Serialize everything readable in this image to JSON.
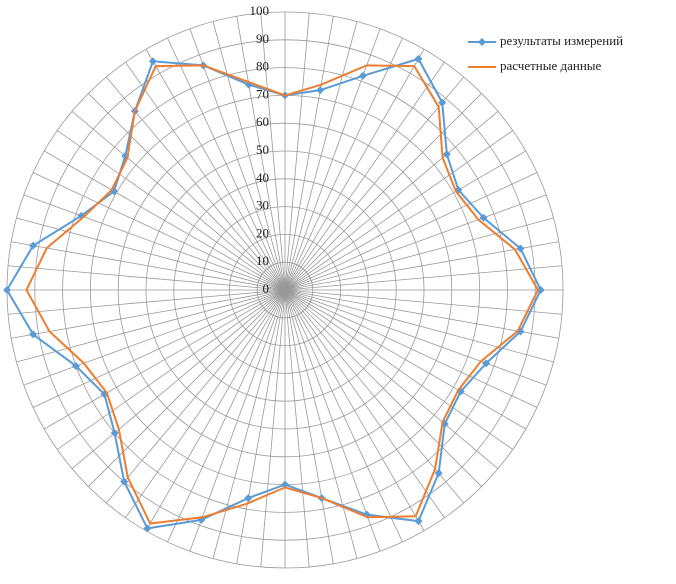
{
  "chart_data": {
    "type": "radar",
    "categories": [
      null,
      null,
      null,
      null,
      null,
      null,
      null,
      null,
      null,
      null,
      null,
      null,
      null,
      null,
      null,
      null,
      null,
      null,
      null,
      null,
      null,
      null,
      null,
      null,
      null,
      null,
      null,
      null,
      null,
      null,
      null,
      null,
      null,
      null,
      null,
      null
    ],
    "series": [
      {
        "name": "результаты измерений",
        "color": "#5b9bd5",
        "marker": true,
        "values": [
          70,
          73,
          82,
          96,
          88,
          76,
          72,
          76,
          86,
          92,
          86,
          77,
          73,
          75,
          86,
          96,
          86,
          76,
          70,
          76,
          88,
          99,
          90,
          80,
          75,
          80,
          92,
          100,
          92,
          78,
          71,
          75,
          84,
          95,
          86,
          75
        ]
      },
      {
        "name": "расчетные данные",
        "color": "#ed7d31",
        "marker": false,
        "values": [
          70,
          75,
          86,
          93,
          86,
          74,
          71,
          74,
          84,
          91,
          85,
          75,
          72,
          74,
          84,
          94,
          87,
          76,
          71,
          78,
          87,
          97,
          88,
          78,
          74,
          77,
          86,
          93,
          87,
          77,
          72,
          74,
          84,
          93,
          86,
          76
        ]
      }
    ],
    "ylim": [
      0,
      100
    ],
    "yticks": [
      0,
      10,
      20,
      30,
      40,
      50,
      60,
      70,
      80,
      90,
      100
    ],
    "grid": true,
    "legend": "top-right"
  }
}
